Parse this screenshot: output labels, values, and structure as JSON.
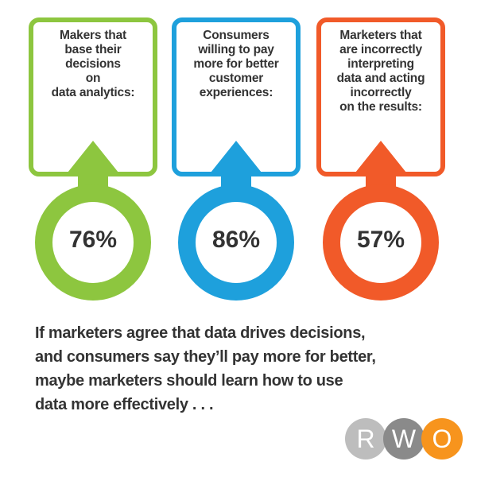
{
  "stats": [
    {
      "label": "Makers that\nbase their\ndecisions\non\ndata analytics:",
      "value": "76%",
      "color": "#8DC63F"
    },
    {
      "label": "Consumers\nwilling to pay\nmore for better\ncustomer\nexperiences:",
      "value": "86%",
      "color": "#1EA0DC"
    },
    {
      "label": "Marketers that\nare incorrectly\ninterpreting\ndata and acting\nincorrectly\non the results:",
      "value": "57%",
      "color": "#F15A29"
    }
  ],
  "summary": {
    "lines": [
      "If marketers agree that data drives decisions,",
      "and consumers say they’ll pay more for better,",
      "maybe marketers should learn how to use",
      "data more effectively . . ."
    ]
  },
  "logo": {
    "letters": [
      "R",
      "W",
      "O"
    ],
    "colors": [
      "#BDBDBD",
      "#8A8A8A",
      "#F7941D"
    ]
  }
}
